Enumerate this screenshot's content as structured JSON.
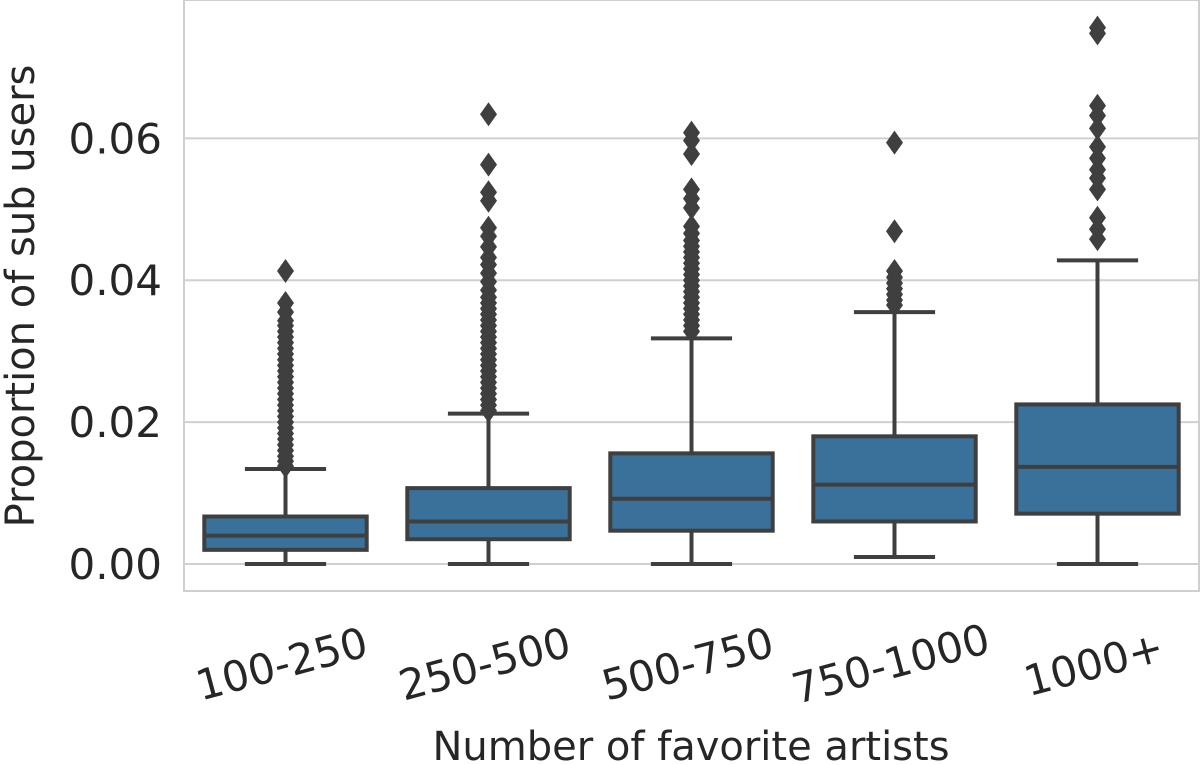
{
  "chart_data": {
    "type": "box",
    "xlabel": "Number of favorite artists",
    "ylabel": "Proportion of sub users",
    "ylim": [
      -0.0038,
      0.0795
    ],
    "yticks": [
      0.0,
      0.02,
      0.04,
      0.06
    ],
    "ytick_labels": [
      "0.00",
      "0.02",
      "0.04",
      "0.06"
    ],
    "grid": "horizontal",
    "box_color": "#3a719a",
    "line_color": "#3f3f3f",
    "categories": [
      "100-250",
      "250-500",
      "500-750",
      "750-1000",
      "1000+"
    ],
    "boxes": [
      {
        "category": "100-250",
        "whisker_low": 0.0,
        "q1": 0.002,
        "median": 0.004,
        "q3": 0.0067,
        "whisker_high": 0.0134,
        "outliers": [
          0.0138,
          0.0145,
          0.0152,
          0.016,
          0.0168,
          0.0176,
          0.0184,
          0.0192,
          0.02,
          0.0208,
          0.0216,
          0.0224,
          0.0232,
          0.024,
          0.0248,
          0.0256,
          0.0264,
          0.0272,
          0.028,
          0.0288,
          0.0296,
          0.0304,
          0.0312,
          0.032,
          0.0328,
          0.0336,
          0.0343,
          0.0355,
          0.0368,
          0.0413
        ]
      },
      {
        "category": "250-500",
        "whisker_low": 0.0,
        "q1": 0.0035,
        "median": 0.006,
        "q3": 0.0107,
        "whisker_high": 0.0212,
        "outliers": [
          0.0216,
          0.0224,
          0.0232,
          0.024,
          0.0248,
          0.0256,
          0.0264,
          0.0272,
          0.028,
          0.0288,
          0.0296,
          0.0304,
          0.0312,
          0.032,
          0.0328,
          0.0336,
          0.0344,
          0.0352,
          0.036,
          0.0368,
          0.0376,
          0.0386,
          0.0398,
          0.041,
          0.0422,
          0.0432,
          0.0447,
          0.0462,
          0.0474,
          0.0512,
          0.0524,
          0.0563,
          0.0634
        ]
      },
      {
        "category": "500-750",
        "whisker_low": 0.0,
        "q1": 0.0047,
        "median": 0.0092,
        "q3": 0.0156,
        "whisker_high": 0.0318,
        "outliers": [
          0.0328,
          0.0336,
          0.0344,
          0.0352,
          0.036,
          0.0368,
          0.0376,
          0.0384,
          0.0392,
          0.04,
          0.0408,
          0.0416,
          0.0424,
          0.0432,
          0.044,
          0.0448,
          0.0456,
          0.0466,
          0.0476,
          0.0502,
          0.0515,
          0.0528,
          0.0578,
          0.0597,
          0.0608
        ]
      },
      {
        "category": "750-1000",
        "whisker_low": 0.001,
        "q1": 0.006,
        "median": 0.0112,
        "q3": 0.018,
        "whisker_high": 0.0355,
        "outliers": [
          0.0365,
          0.0372,
          0.038,
          0.0388,
          0.0396,
          0.0404,
          0.0413,
          0.0469,
          0.0594
        ]
      },
      {
        "category": "1000+",
        "whisker_low": 0.0,
        "q1": 0.0071,
        "median": 0.0137,
        "q3": 0.0225,
        "whisker_high": 0.0428,
        "outliers": [
          0.0458,
          0.0472,
          0.0488,
          0.0528,
          0.0544,
          0.0556,
          0.0572,
          0.0588,
          0.0614,
          0.0632,
          0.0646,
          0.0748,
          0.0756
        ]
      }
    ]
  }
}
